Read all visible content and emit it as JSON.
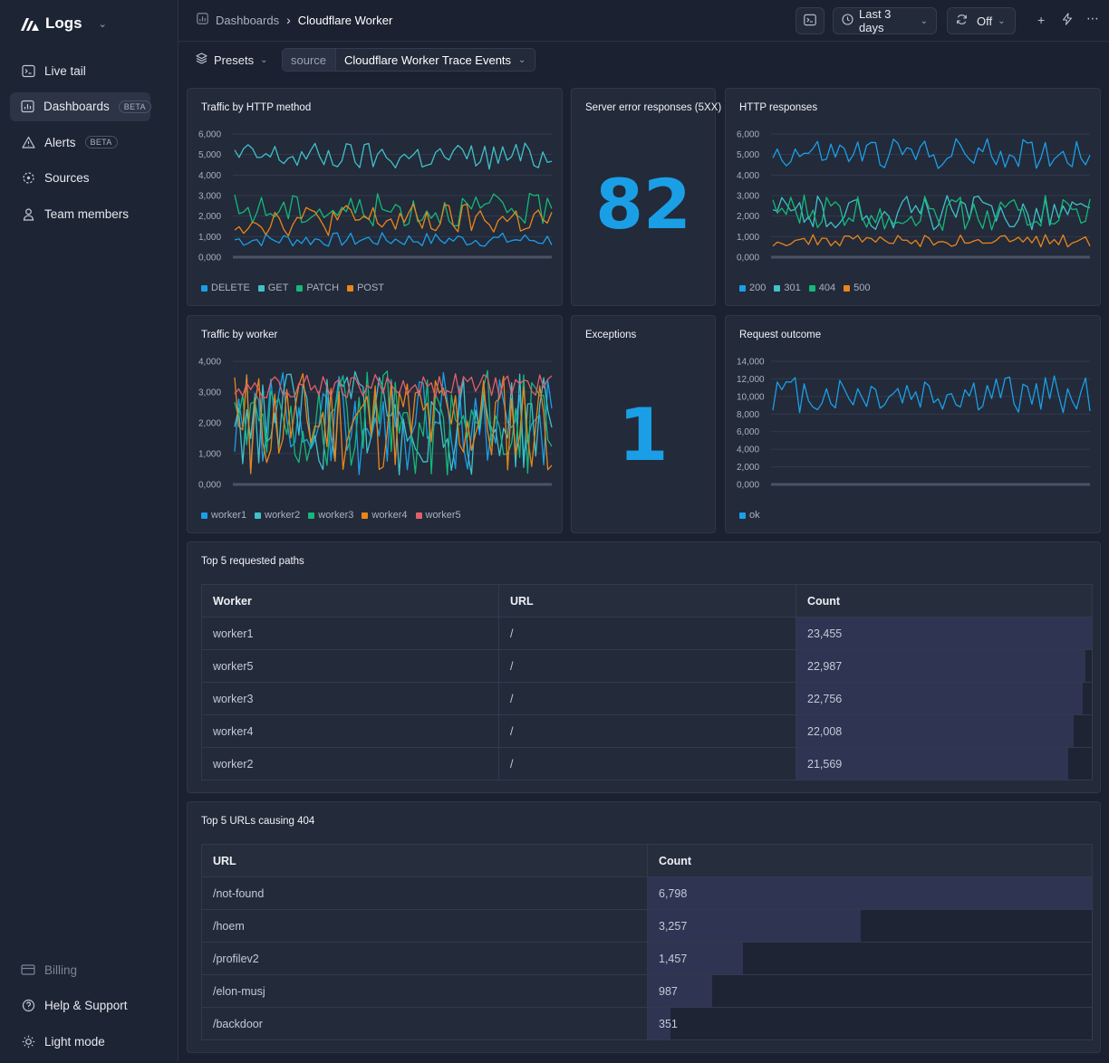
{
  "app": {
    "name": "Logs"
  },
  "sidebar": {
    "items": [
      {
        "label": "Live tail",
        "icon": "terminal-icon"
      },
      {
        "label": "Dashboards",
        "icon": "chart-icon",
        "badge": "BETA",
        "active": true
      },
      {
        "label": "Alerts",
        "icon": "warning-icon",
        "badge": "BETA"
      },
      {
        "label": "Sources",
        "icon": "sources-icon"
      },
      {
        "label": "Team members",
        "icon": "user-icon"
      }
    ],
    "bottom": [
      {
        "label": "Billing",
        "icon": "card-icon"
      },
      {
        "label": "Help & Support",
        "icon": "help-icon"
      },
      {
        "label": "Light mode",
        "icon": "sun-icon"
      }
    ]
  },
  "breadcrumb": {
    "parent": "Dashboards",
    "current": "Cloudflare Worker"
  },
  "toolbar": {
    "time_range": "Last 3 days",
    "refresh": "Off"
  },
  "filters": {
    "presets_label": "Presets",
    "source_label": "source",
    "source_value": "Cloudflare Worker Trace Events"
  },
  "colors": {
    "blue": "#1a9fe6",
    "teal": "#3fc1c9",
    "green": "#14b87a",
    "orange": "#e8861a",
    "red": "#e0606a"
  },
  "cards": {
    "traffic_method": {
      "title": "Traffic by HTTP method"
    },
    "server_errors": {
      "title": "Server error responses (5XX)",
      "value": "82"
    },
    "http_responses": {
      "title": "HTTP responses"
    },
    "traffic_worker": {
      "title": "Traffic by worker"
    },
    "exceptions": {
      "title": "Exceptions",
      "value": "1"
    },
    "request_outcome": {
      "title": "Request outcome"
    }
  },
  "chart_data": [
    {
      "type": "line",
      "title": "Traffic by HTTP method",
      "ylim": [
        0,
        6000
      ],
      "yticks": [
        "6,000",
        "5,000",
        "4,000",
        "3,000",
        "2,000",
        "1,000",
        "0,000"
      ],
      "series": [
        {
          "name": "DELETE",
          "color": "#1a9fe6",
          "approx_range": [
            500,
            1200
          ]
        },
        {
          "name": "GET",
          "color": "#3fc1c9",
          "approx_range": [
            4200,
            5600
          ]
        },
        {
          "name": "PATCH",
          "color": "#14b87a",
          "approx_range": [
            1500,
            3100
          ]
        },
        {
          "name": "POST",
          "color": "#e8861a",
          "approx_range": [
            1000,
            2600
          ]
        }
      ]
    },
    {
      "type": "line",
      "title": "HTTP responses",
      "ylim": [
        0,
        6000
      ],
      "yticks": [
        "6,000",
        "5,000",
        "4,000",
        "3,000",
        "2,000",
        "1,000",
        "0,000"
      ],
      "series": [
        {
          "name": "200",
          "color": "#1a9fe6",
          "approx_range": [
            4300,
            5800
          ]
        },
        {
          "name": "301",
          "color": "#3fc1c9",
          "approx_range": [
            1300,
            3000
          ]
        },
        {
          "name": "404",
          "color": "#14b87a",
          "approx_range": [
            1300,
            3100
          ]
        },
        {
          "name": "500",
          "color": "#e8861a",
          "approx_range": [
            500,
            1100
          ]
        }
      ]
    },
    {
      "type": "line",
      "title": "Traffic by worker",
      "ylim": [
        0,
        4000
      ],
      "yticks": [
        "4,000",
        "3,000",
        "2,000",
        "1,000",
        "0,000"
      ],
      "series": [
        {
          "name": "worker1",
          "color": "#1a9fe6",
          "approx_range": [
            300,
            3700
          ]
        },
        {
          "name": "worker2",
          "color": "#3fc1c9",
          "approx_range": [
            300,
            3700
          ]
        },
        {
          "name": "worker3",
          "color": "#14b87a",
          "approx_range": [
            300,
            3700
          ]
        },
        {
          "name": "worker4",
          "color": "#e8861a",
          "approx_range": [
            300,
            3700
          ]
        },
        {
          "name": "worker5",
          "color": "#e0606a",
          "approx_range": [
            2800,
            3600
          ]
        }
      ]
    },
    {
      "type": "line",
      "title": "Request outcome",
      "ylim": [
        0,
        14000
      ],
      "yticks": [
        "14,000",
        "12,000",
        "10,000",
        "8,000",
        "6,000",
        "4,000",
        "2,000",
        "0,000"
      ],
      "series": [
        {
          "name": "ok",
          "color": "#1a9fe6",
          "approx_range": [
            8000,
            12500
          ]
        }
      ]
    }
  ],
  "top_paths": {
    "title": "Top 5 requested paths",
    "columns": [
      "Worker",
      "URL",
      "Count"
    ],
    "rows": [
      {
        "worker": "worker1",
        "url": "/",
        "count": "23,455",
        "value": 23455
      },
      {
        "worker": "worker5",
        "url": "/",
        "count": "22,987",
        "value": 22987
      },
      {
        "worker": "worker3",
        "url": "/",
        "count": "22,756",
        "value": 22756
      },
      {
        "worker": "worker4",
        "url": "/",
        "count": "22,008",
        "value": 22008
      },
      {
        "worker": "worker2",
        "url": "/",
        "count": "21,569",
        "value": 21569
      }
    ]
  },
  "top_404": {
    "title": "Top 5 URLs causing 404",
    "columns": [
      "URL",
      "Count"
    ],
    "rows": [
      {
        "url": "/not-found",
        "count": "6,798",
        "value": 6798
      },
      {
        "url": "/hoem",
        "count": "3,257",
        "value": 3257
      },
      {
        "url": "/profilev2",
        "count": "1,457",
        "value": 1457
      },
      {
        "url": "/elon-musj",
        "count": "987",
        "value": 987
      },
      {
        "url": "/backdoor",
        "count": "351",
        "value": 351
      }
    ]
  }
}
